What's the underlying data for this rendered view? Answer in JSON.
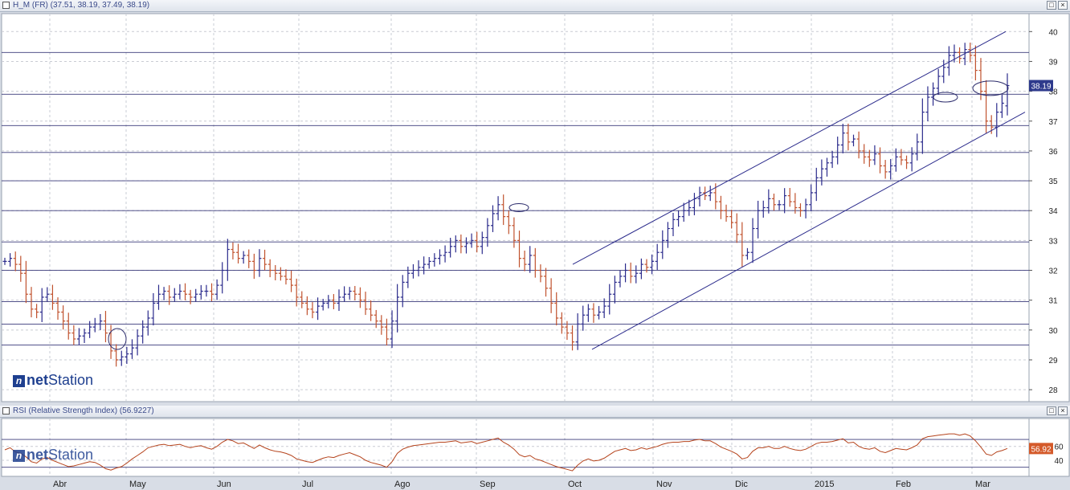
{
  "main_panel": {
    "title": "H_M (FR) (37.51, 38.19, 37.49, 38.19)",
    "last_price_label": "38.19"
  },
  "rsi_panel": {
    "title": "RSI (Relative Strength Index) (56.9227)",
    "last_value_label": "56.92"
  },
  "watermark": {
    "icon": "n",
    "part1": "net",
    "part2": "Station"
  },
  "window_buttons": {
    "restore": "□",
    "close": "×"
  },
  "colors": {
    "up": "#2b2b8c",
    "down": "#c0522e",
    "line": "#2b2b8c",
    "rsi": "#b5431c",
    "price_label_bg": "#2e3a8c",
    "rsi_label_bg": "#d45a2a"
  },
  "chart_data": [
    {
      "type": "ohlc",
      "title": "H_M (FR)",
      "ylim": [
        27.6,
        40.6
      ],
      "y_ticks": [
        28,
        29,
        30,
        31,
        32,
        33,
        34,
        35,
        36,
        37,
        38,
        39,
        40
      ],
      "x_ticks": [
        "Abr",
        "May",
        "Jun",
        "Jul",
        "Ago",
        "Sep",
        "Oct",
        "Nov",
        "Dic",
        "2015",
        "Feb",
        "Mar"
      ],
      "grid": true,
      "last": {
        "open": 37.51,
        "high": 38.19,
        "low": 37.49,
        "close": 38.19
      },
      "horizontal_levels": [
        29.5,
        30.2,
        30.95,
        32.0,
        32.95,
        34.0,
        35.0,
        35.95,
        36.85,
        37.9,
        39.3
      ],
      "channel_upper": [
        [
          32.2,
          "Oct"
        ],
        [
          40.0,
          "Mar"
        ]
      ],
      "channel_lower": [
        [
          29.4,
          "Oct"
        ],
        [
          37.3,
          "Mar"
        ]
      ],
      "prices": [
        32.3,
        32.4,
        32.2,
        31.9,
        31.2,
        30.7,
        30.6,
        31.1,
        31.2,
        30.9,
        30.6,
        30.3,
        29.9,
        29.7,
        29.8,
        29.9,
        30.1,
        30.2,
        30.3,
        29.9,
        29.3,
        29.0,
        29.1,
        29.2,
        29.4,
        29.8,
        30.1,
        30.4,
        30.9,
        31.2,
        31.3,
        31.1,
        31.2,
        31.3,
        31.2,
        31.1,
        31.2,
        31.3,
        31.3,
        31.2,
        31.5,
        32.0,
        32.7,
        32.6,
        32.4,
        32.5,
        32.3,
        32.0,
        32.4,
        32.2,
        32.0,
        31.9,
        31.8,
        31.7,
        31.5,
        31.1,
        30.9,
        30.7,
        30.6,
        30.8,
        30.9,
        31.0,
        30.9,
        31.1,
        31.2,
        31.3,
        31.2,
        31.0,
        30.7,
        30.5,
        30.3,
        30.1,
        29.7,
        30.3,
        31.1,
        31.6,
        31.9,
        32.0,
        32.1,
        32.2,
        32.3,
        32.4,
        32.5,
        32.6,
        32.8,
        33.0,
        32.8,
        32.9,
        33.0,
        32.8,
        33.1,
        33.5,
        33.9,
        34.2,
        33.8,
        33.5,
        33.0,
        32.4,
        32.2,
        32.5,
        32.0,
        31.8,
        31.4,
        30.9,
        30.4,
        30.1,
        29.9,
        29.6,
        30.2,
        30.5,
        30.7,
        30.5,
        30.6,
        30.8,
        31.2,
        31.6,
        31.8,
        32.0,
        31.8,
        31.9,
        32.2,
        32.1,
        32.3,
        32.6,
        33.0,
        33.4,
        33.7,
        33.8,
        34.0,
        34.1,
        34.4,
        34.6,
        34.5,
        34.6,
        34.3,
        34.0,
        33.8,
        33.6,
        33.2,
        32.5,
        32.6,
        33.4,
        34.0,
        34.1,
        34.4,
        34.2,
        34.2,
        34.5,
        34.3,
        34.1,
        34.0,
        34.2,
        34.6,
        35.1,
        35.4,
        35.6,
        35.8,
        36.2,
        36.6,
        36.3,
        36.4,
        36.0,
        35.8,
        35.7,
        35.9,
        35.5,
        35.3,
        35.5,
        35.8,
        35.7,
        35.6,
        35.9,
        36.3,
        37.3,
        37.8,
        38.1,
        38.5,
        38.8,
        39.2,
        39.3,
        39.1,
        39.4,
        39.2,
        38.7,
        38.0,
        37.0,
        36.8,
        37.3,
        37.6,
        38.19
      ]
    },
    {
      "type": "line",
      "title": "RSI (Relative Strength Index)",
      "ylim": [
        17,
        100
      ],
      "y_ticks": [
        40,
        60
      ],
      "levels": [
        30,
        70
      ],
      "last_value": 56.9227,
      "values": [
        55,
        58,
        52,
        50,
        45,
        38,
        36,
        42,
        44,
        40,
        37,
        34,
        31,
        32,
        34,
        36,
        38,
        37,
        33,
        28,
        26,
        29,
        31,
        36,
        42,
        47,
        52,
        58,
        60,
        62,
        63,
        61,
        62,
        63,
        60,
        58,
        60,
        61,
        58,
        56,
        60,
        66,
        70,
        68,
        64,
        65,
        61,
        57,
        62,
        58,
        55,
        53,
        52,
        50,
        47,
        42,
        40,
        38,
        37,
        40,
        43,
        45,
        44,
        47,
        49,
        51,
        48,
        45,
        40,
        37,
        35,
        33,
        30,
        38,
        50,
        56,
        59,
        61,
        62,
        63,
        64,
        65,
        66,
        66,
        67,
        68,
        65,
        66,
        67,
        64,
        66,
        68,
        70,
        72,
        66,
        62,
        56,
        48,
        45,
        47,
        42,
        40,
        37,
        34,
        31,
        29,
        27,
        25,
        33,
        39,
        42,
        39,
        40,
        43,
        48,
        53,
        55,
        57,
        54,
        55,
        58,
        56,
        58,
        60,
        63,
        65,
        66,
        66,
        67,
        67,
        69,
        70,
        68,
        68,
        64,
        59,
        56,
        53,
        49,
        42,
        44,
        53,
        58,
        58,
        60,
        57,
        57,
        60,
        57,
        55,
        54,
        56,
        60,
        64,
        66,
        66,
        67,
        69,
        71,
        65,
        66,
        60,
        57,
        56,
        58,
        53,
        51,
        54,
        57,
        56,
        55,
        58,
        62,
        71,
        74,
        75,
        76,
        77,
        78,
        78,
        76,
        78,
        75,
        68,
        59,
        49,
        47,
        52,
        54,
        57
      ]
    }
  ]
}
